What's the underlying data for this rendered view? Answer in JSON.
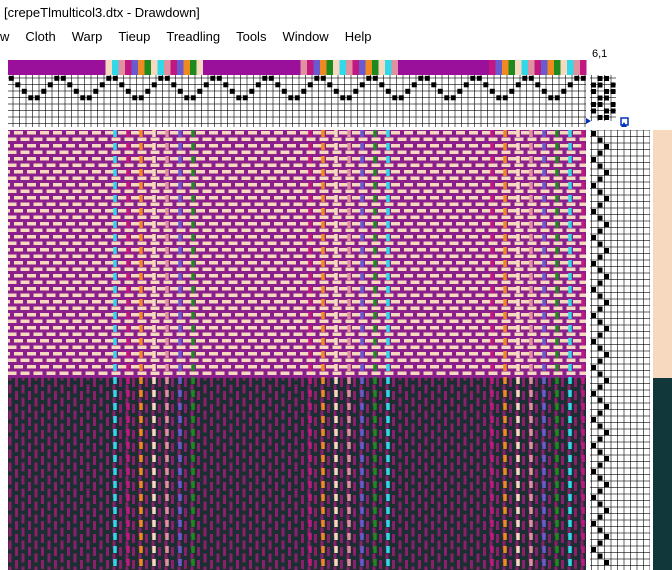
{
  "window": {
    "title": "[crepeTlmulticol3.dtx - Drawdown]"
  },
  "menu": [
    "w",
    "Cloth",
    "Warp",
    "Tieup",
    "Treadling",
    "Tools",
    "Window",
    "Help"
  ],
  "status": {
    "position": "6,1"
  }
}
